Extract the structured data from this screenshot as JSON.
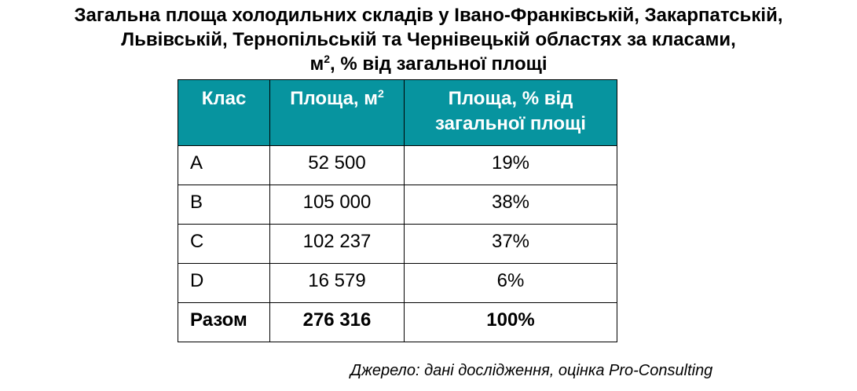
{
  "title": {
    "line1": "Загальна площа холодильних складів у Івано-Франківській, Закарпатській,",
    "line2": "Львівській, Тернопільській та Чернівецькій областях за класами,",
    "line3_prefix": "м",
    "line3_sup": "2",
    "line3_suffix": ", % від загальної площі"
  },
  "table": {
    "headers": {
      "class": "Клас",
      "area_prefix": "Площа, м",
      "area_sup": "2",
      "share_line1": "Площа, % від",
      "share_line2": "загальної площі"
    },
    "rows": [
      {
        "class": "A",
        "area": "52 500",
        "share": "19%"
      },
      {
        "class": "B",
        "area": "105 000",
        "share": "38%"
      },
      {
        "class": "C",
        "area": "102 237",
        "share": "37%"
      },
      {
        "class": "D",
        "area": "16 579",
        "share": "6%"
      }
    ],
    "total": {
      "class": "Разом",
      "area": "276 316",
      "share": "100%"
    }
  },
  "source": "Джерело: дані дослідження, оцінка Pro-Consulting",
  "colors": {
    "header_background": "#07949f",
    "header_text": "#ffffff",
    "border": "#000000"
  }
}
